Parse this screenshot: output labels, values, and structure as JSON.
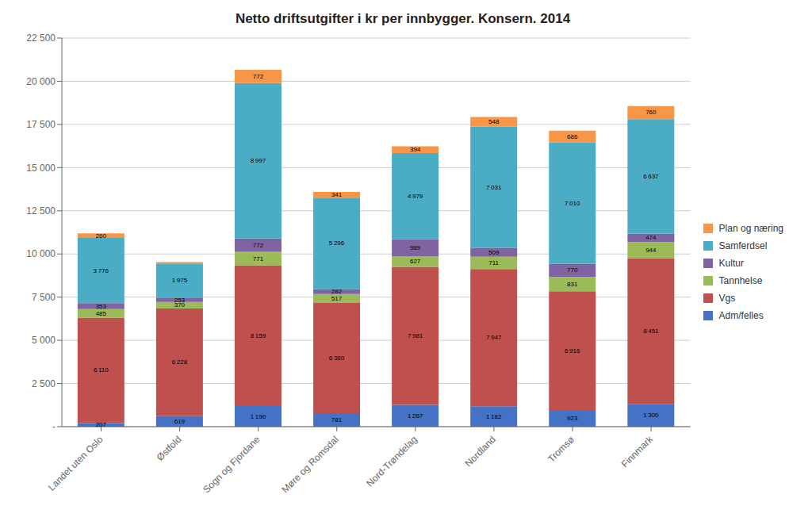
{
  "chart_data": {
    "type": "bar",
    "stacked": true,
    "title": "Netto driftsutgifter i kr per innbygger. Konsern. 2014",
    "categories": [
      "Landet uten Oslo",
      "Østfold",
      "Sogn og Fjordane",
      "Møre og Romsdal",
      "Nord-Trøndelag",
      "Nordland",
      "Tromsø",
      "Finnmark"
    ],
    "series": [
      {
        "name": "Adm/felles",
        "color": "#4472C4",
        "values": [
          207,
          619,
          1190,
          781,
          1267,
          1182,
          923,
          1300
        ],
        "value_labels": [
          "207",
          "619",
          "1 190",
          "781",
          "1 267",
          "1 182",
          "923",
          "1 300"
        ]
      },
      {
        "name": "Vgs",
        "color": "#C0504D",
        "values": [
          6110,
          6228,
          8159,
          6380,
          7981,
          7947,
          6916,
          8451
        ],
        "value_labels": [
          "6 110",
          "6 228",
          "8 159",
          "6 380",
          "7 981",
          "7 947",
          "6 916",
          "8 451"
        ]
      },
      {
        "name": "Tannhelse",
        "color": "#9BBB59",
        "values": [
          485,
          370,
          771,
          517,
          627,
          711,
          831,
          944
        ],
        "value_labels": [
          "485",
          "370",
          "771",
          "517",
          "627",
          "711",
          "831",
          "944"
        ]
      },
      {
        "name": "Kultur",
        "color": "#8064A2",
        "values": [
          353,
          253,
          772,
          282,
          989,
          509,
          770,
          474
        ],
        "value_labels": [
          "353",
          "253",
          "772",
          "282",
          "989",
          "509",
          "770",
          "474"
        ]
      },
      {
        "name": "Samferdsel",
        "color": "#4BACC6",
        "values": [
          3776,
          1975,
          8997,
          5296,
          4979,
          7031,
          7010,
          6637
        ],
        "value_labels": [
          "3 776",
          "1 975",
          "8 997",
          "5 296",
          "4 979",
          "7 031",
          "7 010",
          "6 637"
        ]
      },
      {
        "name": "Plan og næring",
        "color": "#F79646",
        "values": [
          260,
          84,
          772,
          341,
          394,
          548,
          686,
          760
        ],
        "value_labels": [
          "260",
          null,
          "772",
          "341",
          "394",
          "548",
          "686",
          "760"
        ]
      }
    ],
    "ylim": [
      0,
      22500
    ],
    "yticks": [
      {
        "value": 0,
        "label": "-"
      },
      {
        "value": 2500,
        "label": "2 500"
      },
      {
        "value": 5000,
        "label": "5 000"
      },
      {
        "value": 7500,
        "label": "7 500"
      },
      {
        "value": 10000,
        "label": "10 000"
      },
      {
        "value": 12500,
        "label": "12 500"
      },
      {
        "value": 15000,
        "label": "15 000"
      },
      {
        "value": 17500,
        "label": "17 500"
      },
      {
        "value": 20000,
        "label": "20 000"
      },
      {
        "value": 22500,
        "label": "22 500"
      }
    ],
    "grid": true,
    "legend": "right",
    "data_labels": true
  }
}
